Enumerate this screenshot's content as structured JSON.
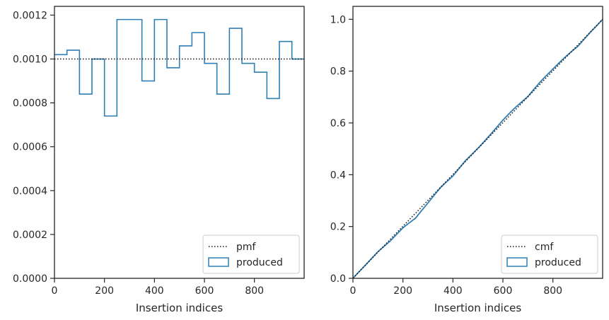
{
  "colors": {
    "series": "#2f7fb4",
    "reference": "#111111",
    "spine": "#262626",
    "legend_border": "#cccccc"
  },
  "chart_data": [
    {
      "type": "line",
      "style": "step-histogram",
      "xlabel": "Insertion indices",
      "ylabel": "",
      "xlim": [
        0,
        999
      ],
      "ylim": [
        0,
        0.00124
      ],
      "xticks": [
        0,
        200,
        400,
        600,
        800
      ],
      "xtick_labels": [
        "0",
        "200",
        "400",
        "600",
        "800"
      ],
      "yticks": [
        0,
        0.0002,
        0.0004,
        0.0006,
        0.0008,
        0.001,
        0.0012
      ],
      "ytick_labels": [
        "0.0000",
        "0.0002",
        "0.0004",
        "0.0006",
        "0.0008",
        "0.0010",
        "0.0012"
      ],
      "grid": false,
      "legend_position": "lower-right",
      "reference": {
        "name": "pmf",
        "value": 0.001,
        "style": "dotted"
      },
      "series": [
        {
          "name": "produced",
          "bin_edges": [
            0,
            50,
            100,
            150,
            200,
            250,
            300,
            350,
            400,
            450,
            500,
            550,
            600,
            650,
            700,
            750,
            800,
            850,
            900,
            950,
            999
          ],
          "values": [
            0.00102,
            0.00104,
            0.00084,
            0.001,
            0.00074,
            0.00118,
            0.00118,
            0.0009,
            0.00118,
            0.00096,
            0.00106,
            0.00112,
            0.00098,
            0.00084,
            0.00114,
            0.00098,
            0.00094,
            0.00082,
            0.00108,
            0.001
          ]
        }
      ]
    },
    {
      "type": "line",
      "style": "cumulative-step",
      "xlabel": "Insertion indices",
      "ylabel": "",
      "xlim": [
        0,
        999
      ],
      "ylim": [
        0,
        1.05
      ],
      "xticks": [
        0,
        200,
        400,
        600,
        800
      ],
      "xtick_labels": [
        "0",
        "200",
        "400",
        "600",
        "800"
      ],
      "yticks": [
        0,
        0.2,
        0.4,
        0.6,
        0.8,
        1.0
      ],
      "ytick_labels": [
        "0.0",
        "0.2",
        "0.4",
        "0.6",
        "0.8",
        "1.0"
      ],
      "grid": false,
      "legend_position": "lower-right",
      "reference": {
        "name": "cmf",
        "style": "dotted",
        "x": [
          0,
          999
        ],
        "y": [
          0.001,
          1.0
        ]
      },
      "series": [
        {
          "name": "produced",
          "x": [
            0,
            25,
            50,
            75,
            100,
            125,
            150,
            175,
            200,
            225,
            250,
            275,
            300,
            325,
            350,
            375,
            400,
            425,
            450,
            475,
            500,
            525,
            550,
            575,
            600,
            625,
            650,
            675,
            700,
            725,
            750,
            775,
            800,
            825,
            850,
            875,
            900,
            925,
            950,
            975,
            999
          ],
          "y": [
            0.0,
            0.026,
            0.051,
            0.077,
            0.103,
            0.124,
            0.145,
            0.17,
            0.195,
            0.214,
            0.232,
            0.262,
            0.291,
            0.321,
            0.35,
            0.373,
            0.395,
            0.425,
            0.454,
            0.478,
            0.502,
            0.528,
            0.555,
            0.583,
            0.611,
            0.636,
            0.66,
            0.681,
            0.702,
            0.731,
            0.759,
            0.784,
            0.808,
            0.832,
            0.855,
            0.876,
            0.896,
            0.923,
            0.95,
            0.975,
            1.0
          ]
        }
      ]
    }
  ]
}
